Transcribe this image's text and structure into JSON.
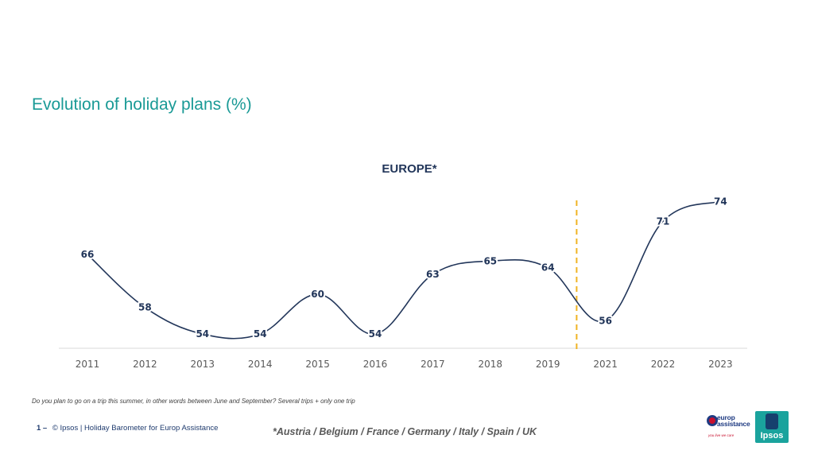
{
  "slide": {
    "title": "Evolution of holiday plans (%)",
    "question": "Do you plan to go on a trip this summer, in other words between June and September? Several trips + only one trip",
    "page_number": "1 –",
    "copyright": "© Ipsos | Holiday Barometer for Europ Assistance",
    "countries_note": "*Austria / Belgium / France / Germany / Italy / Spain / UK"
  },
  "logos": {
    "europ_assistance": {
      "line1": "europ",
      "line2": "assistance",
      "tagline": "you live we care"
    },
    "ipsos": "Ipsos"
  },
  "chart_data": {
    "type": "line",
    "title": "EUROPE*",
    "categories": [
      "2011",
      "2012",
      "2013",
      "2014",
      "2015",
      "2016",
      "2017",
      "2018",
      "2019",
      "2021",
      "2022",
      "2023"
    ],
    "series": [
      {
        "name": "Europe",
        "values": [
          66,
          58,
          54,
          54,
          60,
          54,
          63,
          65,
          64,
          56,
          71,
          74
        ]
      }
    ],
    "separator_between": [
      "2019",
      "2021"
    ],
    "xlabel": "",
    "ylabel": "",
    "colors": {
      "line": "#22365a",
      "separator": "#f0b323",
      "axis": "#d9d9d9",
      "title": "#1a9a96"
    }
  }
}
